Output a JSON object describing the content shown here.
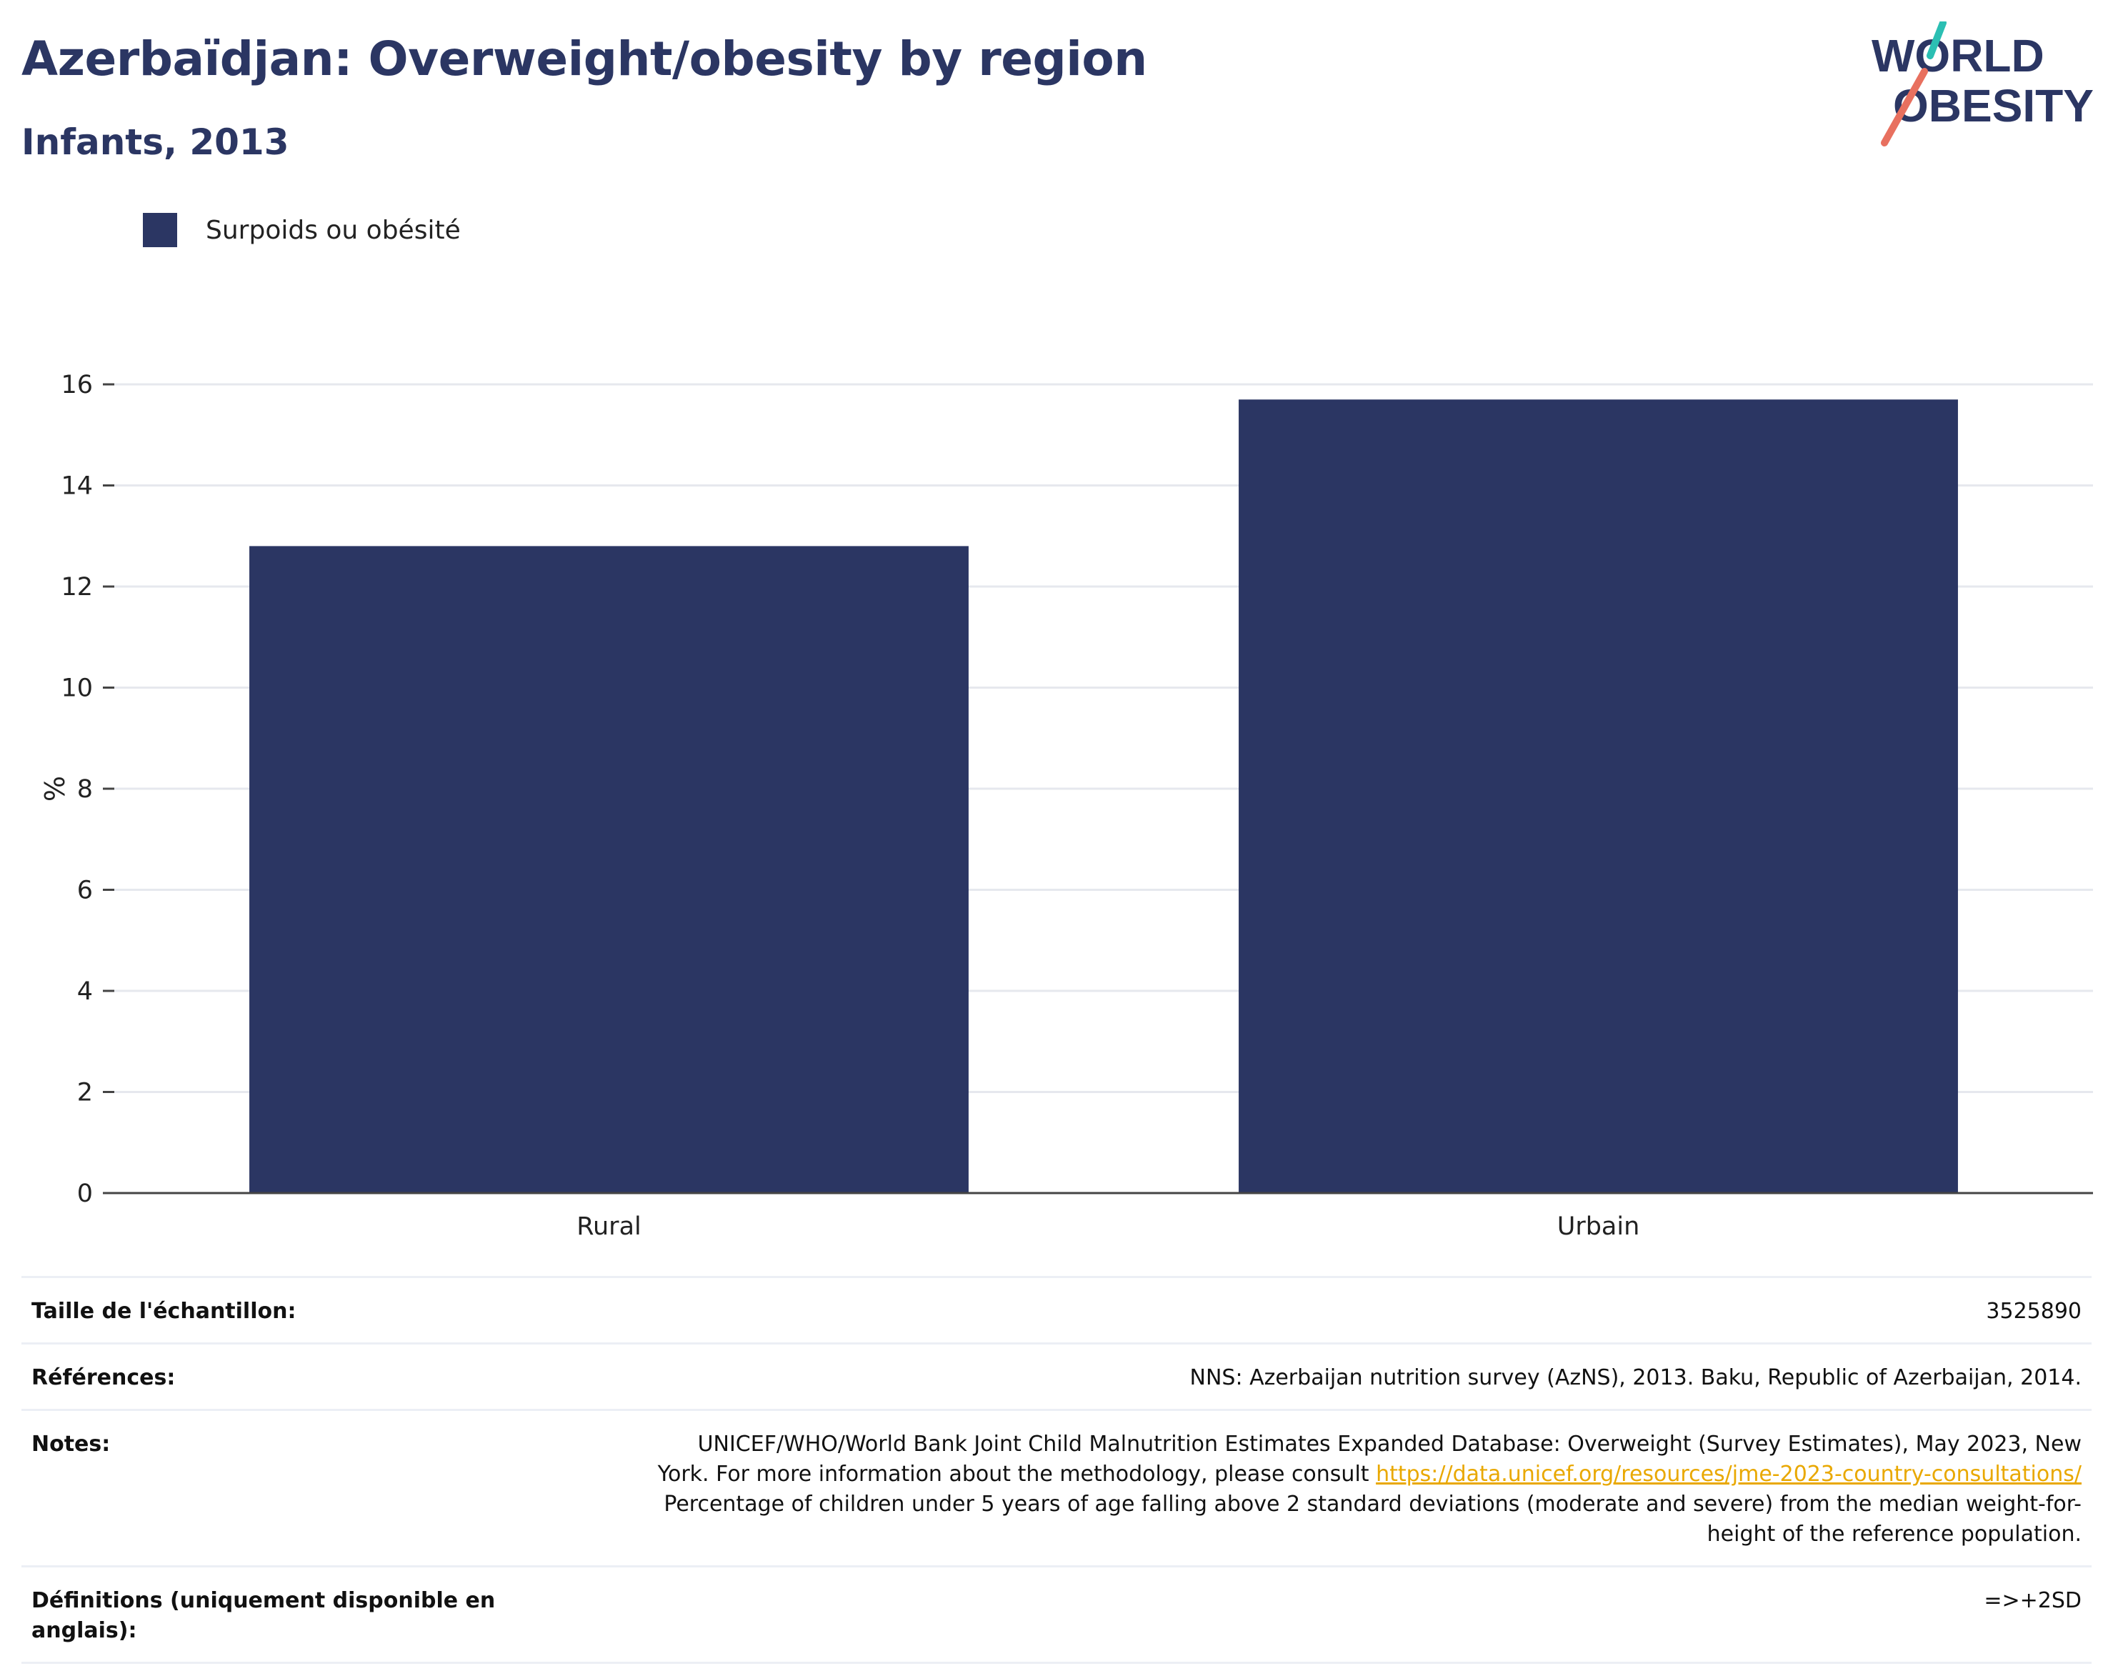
{
  "header": {
    "title": "Azerbaïdjan: Overweight/obesity by region",
    "subtitle": "Infants, 2013"
  },
  "logo": {
    "line1": "WORLD",
    "line2": "OBESITY",
    "colors": {
      "text": "#2b3663",
      "slash_teal": "#2bbfb3",
      "slash_coral": "#e8705f"
    }
  },
  "chart_data": {
    "type": "bar",
    "categories": [
      "Rural",
      "Urbain"
    ],
    "series": [
      {
        "name": "Surpoids ou obésité",
        "values": [
          12.8,
          15.7
        ],
        "color": "#2b3663"
      }
    ],
    "ylabel": "%",
    "xlabel": "",
    "ylim": [
      0,
      16
    ],
    "yticks": [
      0,
      2,
      4,
      6,
      8,
      10,
      12,
      14,
      16
    ],
    "grid": true,
    "legend_position": "top-left"
  },
  "info": {
    "rows": [
      {
        "key": "Taille de l'échantillon:",
        "value": "3525890"
      },
      {
        "key": "Références:",
        "value": "NNS: Azerbaijan nutrition survey (AzNS), 2013. Baku, Republic of Azerbaijan, 2014."
      },
      {
        "key": "Notes:",
        "value_line1": "UNICEF/WHO/World Bank Joint Child Malnutrition Estimates Expanded Database: Overweight (Survey Estimates), May 2023, New",
        "value_line2_prefix": "York. For more information about the methodology, please consult ",
        "value_link": "https://data.unicef.org/resources/jme-2023-country-consultations/",
        "value_line3": "Percentage of children under 5 years of age falling above 2 standard deviations (moderate and severe) from the median weight-for-",
        "value_line4": "height of the reference population."
      },
      {
        "key": "Définitions (uniquement disponible en anglais):",
        "value": "=>+2SD"
      }
    ]
  }
}
